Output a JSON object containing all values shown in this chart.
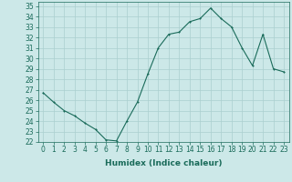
{
  "x": [
    0,
    1,
    2,
    3,
    4,
    5,
    6,
    7,
    8,
    9,
    10,
    11,
    12,
    13,
    14,
    15,
    16,
    17,
    18,
    19,
    20,
    21,
    22,
    23
  ],
  "y": [
    26.7,
    25.8,
    25.0,
    24.5,
    23.8,
    23.2,
    22.2,
    22.1,
    24.0,
    25.8,
    28.5,
    31.0,
    32.3,
    32.5,
    33.5,
    33.8,
    34.8,
    33.8,
    33.0,
    31.0,
    29.3,
    32.3,
    29.0,
    28.7
  ],
  "line_color": "#1a6b5a",
  "marker_color": "#1a6b5a",
  "bg_color": "#cce8e8",
  "grid_color": "#aacfcf",
  "xlabel": "Humidex (Indice chaleur)",
  "xlim": [
    -0.5,
    23.5
  ],
  "ylim": [
    22,
    35.4
  ],
  "yticks": [
    22,
    23,
    24,
    25,
    26,
    27,
    28,
    29,
    30,
    31,
    32,
    33,
    34,
    35
  ],
  "xticks": [
    0,
    1,
    2,
    3,
    4,
    5,
    6,
    7,
    8,
    9,
    10,
    11,
    12,
    13,
    14,
    15,
    16,
    17,
    18,
    19,
    20,
    21,
    22,
    23
  ],
  "xlabel_fontsize": 6.5,
  "tick_fontsize": 5.5,
  "linewidth": 0.8,
  "markersize": 2.0
}
